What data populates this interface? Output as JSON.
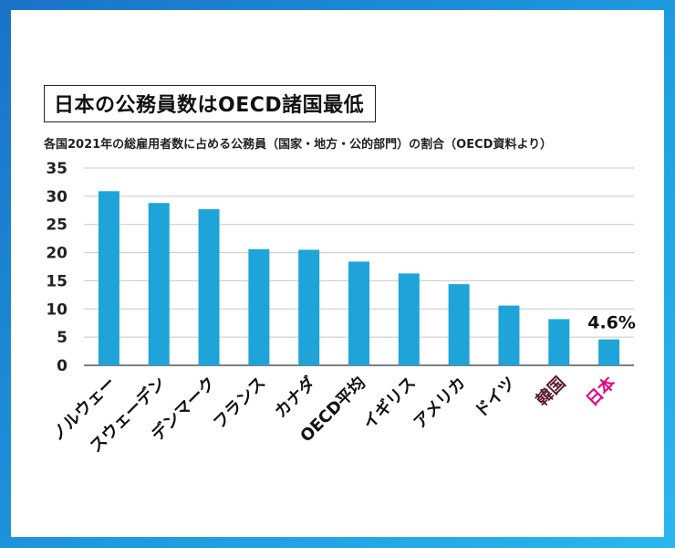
{
  "title": "日本の公務員数はOECD諸国最低",
  "subtitle": "各国2021年の総雇用者数に占める公務員（国家・地方・公的部門）の割合（OECD資料より）",
  "colors": {
    "bar": "#1ea4d9",
    "highlight_label": "#e4007f",
    "korea_label": "#5a1a2e",
    "default_label": "#111111",
    "grid": "#c8c8c8"
  },
  "chart_data": {
    "type": "bar",
    "categories": [
      "ノルウェー",
      "スウェーデン",
      "デンマーク",
      "フランス",
      "カナダ",
      "OECD平均",
      "イギリス",
      "アメリカ",
      "ドイツ",
      "韓国",
      "日本"
    ],
    "values": [
      30.9,
      28.8,
      27.7,
      20.6,
      20.5,
      18.4,
      16.3,
      14.4,
      10.6,
      8.2,
      4.6
    ],
    "ylim": [
      0,
      35
    ],
    "yticks": [
      0,
      5,
      10,
      15,
      20,
      25,
      30,
      35
    ],
    "grid": true,
    "annotations": [
      {
        "category": "日本",
        "text": "4.6%"
      }
    ]
  }
}
